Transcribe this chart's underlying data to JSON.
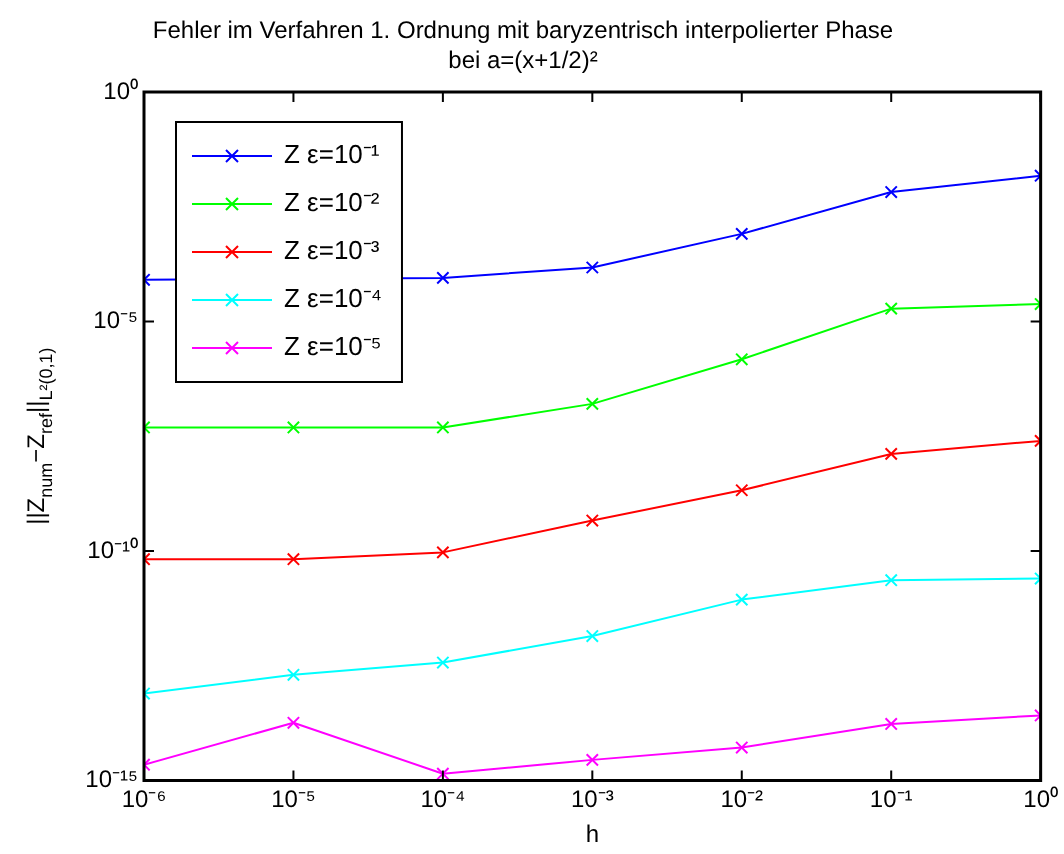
{
  "chart_data": {
    "type": "line",
    "title": "Fehler im Verfahren 1. Ordnung mit baryzentrisch interpolierter Phase\nbei a=(x+1/2)²",
    "xlabel": "h",
    "ylabel": "||Z$_{num}$−Z$_{ref}$||$_{L²(0,1)}$",
    "x": [
      1e-06,
      1e-05,
      0.0001,
      0.001,
      0.01,
      0.1,
      1
    ],
    "series": [
      {
        "name": "Z ε=10⁻¹",
        "color": "#0000ff",
        "values": [
          8.1e-05,
          null,
          8.9e-05,
          0.00015,
          0.00081,
          0.0066,
          0.015
        ]
      },
      {
        "name": "Z ε=10⁻²",
        "color": "#00ff00",
        "values": [
          4.9e-08,
          4.9e-08,
          4.9e-08,
          1.6e-07,
          1.5e-06,
          1.9e-05,
          2.4e-05
        ]
      },
      {
        "name": "Z ε=10⁻³",
        "color": "#ff0000",
        "values": [
          6.6e-11,
          6.6e-11,
          9.3e-11,
          4.6e-10,
          2.1e-09,
          1.3e-08,
          2.5e-08
        ]
      },
      {
        "name": "Z ε=10⁻⁴",
        "color": "#00ffff",
        "values": [
          7.8e-14,
          2e-13,
          3.7e-13,
          1.4e-12,
          8.7e-12,
          2.3e-11,
          2.5e-11
        ]
      },
      {
        "name": "Z ε=10⁻⁵",
        "color": "#ff00ff",
        "values": [
          2.2e-15,
          1.8e-14,
          1.4e-15,
          2.8e-15,
          5.2e-15,
          1.7e-14,
          2.6e-14
        ]
      }
    ],
    "log": "xy",
    "xlim": [
      1e-06,
      1
    ],
    "ylim": [
      1e-15,
      1
    ],
    "xticks": [
      {
        "value": 1e-06,
        "label": "10⁻⁶"
      },
      {
        "value": 1e-05,
        "label": "10⁻⁵"
      },
      {
        "value": 0.0001,
        "label": "10⁻⁴"
      },
      {
        "value": 0.001,
        "label": "10⁻³"
      },
      {
        "value": 0.01,
        "label": "10⁻²"
      },
      {
        "value": 0.1,
        "label": "10⁻¹"
      },
      {
        "value": 1,
        "label": "10⁰"
      }
    ],
    "yticks": [
      {
        "value": 1e-15,
        "label": "10⁻¹⁵"
      },
      {
        "value": 1e-10,
        "label": "10⁻¹⁰"
      },
      {
        "value": 1e-05,
        "label": "10⁻⁵"
      },
      {
        "value": 1,
        "label": "10⁰"
      }
    ],
    "legend": "top left",
    "marker": "cross",
    "line_style": "solid",
    "grid": false
  }
}
